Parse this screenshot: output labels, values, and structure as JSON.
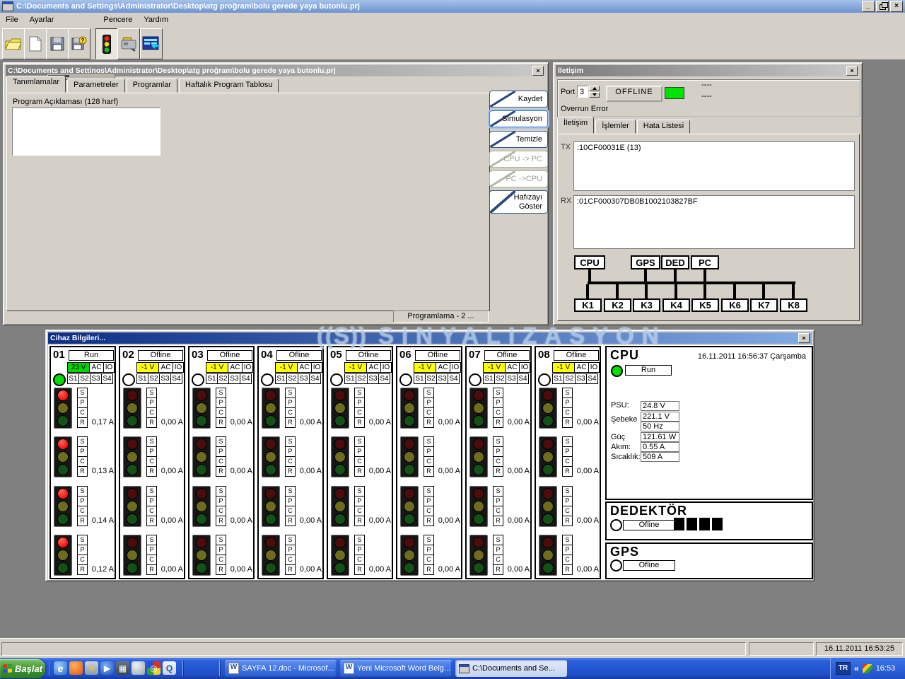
{
  "window": {
    "title": "C:\\Documents and Settings\\Administrator\\Desktop\\atg proğram\\bolu gerede yaya butonlu.prj"
  },
  "menu": {
    "items": [
      "File",
      "Ayarlar",
      "Pencere",
      "Yardım"
    ]
  },
  "toolbar": {
    "buttons": [
      "open",
      "new-document",
      "save",
      "save-help",
      "simulation-traffic-light",
      "device",
      "connection-table"
    ]
  },
  "editor_window": {
    "title": "C:\\Documents and Settings\\Administrator\\Desktop\\atg proğram\\bolu gerede yaya butonlu.prj",
    "tabs": [
      "Tanımlamalar",
      "Parametreler",
      "Programlar",
      "Haftalık Program Tablosu"
    ],
    "active_tab": "Tanımlamalar",
    "description_label": "Program Açıklaması (128 harf)",
    "description_value": "",
    "buttons": [
      {
        "label": "Kaydet",
        "enabled": true,
        "focused": false
      },
      {
        "label": "Simulasyon",
        "enabled": true,
        "focused": true
      },
      {
        "label": "Temizle",
        "enabled": true,
        "focused": false
      },
      {
        "label": "CPU -> PC",
        "enabled": false,
        "focused": false
      },
      {
        "label": "PC ->CPU",
        "enabled": false,
        "focused": false
      },
      {
        "label": "Hafızayı Göster",
        "enabled": true,
        "focused": false
      }
    ],
    "status": "Programlama - 2 ..."
  },
  "iletisim_window": {
    "title": "İletişim",
    "port_label": "Port",
    "port_value": "3",
    "offline_button": "OFFLINE",
    "dashes": [
      "----",
      "----"
    ],
    "error_text": "Overrun Error",
    "tabs": [
      "İletişim",
      "İşlemler",
      "Hata Listesi"
    ],
    "active_tab": "İletişim",
    "tx_label": "TX",
    "tx_value": ":10CF00031E (13)",
    "rx_label": "RX",
    "rx_value": ":01CF000307DB0B1002103827BF",
    "diagram": {
      "top_nodes": [
        "CPU",
        "GPS",
        "DED",
        "PC"
      ],
      "bottom_nodes": [
        "K1",
        "K2",
        "K3",
        "K4",
        "K5",
        "K6",
        "K7",
        "K8"
      ]
    }
  },
  "device_window": {
    "title": "Cihaz Bilgileri...",
    "watermark": {
      "logo": "((S))",
      "text": "SINYALIZASYON"
    },
    "signal_letters": [
      "S",
      "P",
      "C",
      "R"
    ],
    "channels": [
      {
        "id": "01",
        "status": "Run",
        "run": true,
        "voltage": "23 V",
        "ac": "AC",
        "io": "IO",
        "inputs": [
          "S1",
          "S2",
          "S3",
          "S4"
        ],
        "currents": [
          "0,17 A",
          "0,13 A",
          "0,14 A",
          "0,12 A"
        ]
      },
      {
        "id": "02",
        "status": "Ofline",
        "run": false,
        "voltage": "-1 V",
        "ac": "AC",
        "io": "IO",
        "inputs": [
          "S1",
          "S2",
          "S3",
          "S4"
        ],
        "currents": [
          "0,00 A",
          "0,00 A",
          "0,00 A",
          "0,00 A"
        ]
      },
      {
        "id": "03",
        "status": "Ofline",
        "run": false,
        "voltage": "-1 V",
        "ac": "AC",
        "io": "IO",
        "inputs": [
          "S1",
          "S2",
          "S3",
          "S4"
        ],
        "currents": [
          "0,00 A",
          "0,00 A",
          "0,00 A",
          "0,00 A"
        ]
      },
      {
        "id": "04",
        "status": "Ofline",
        "run": false,
        "voltage": "-1 V",
        "ac": "AC",
        "io": "IO",
        "inputs": [
          "S1",
          "S2",
          "S3",
          "S4"
        ],
        "currents": [
          "0,00 A",
          "0,00 A",
          "0,00 A",
          "0,00 A"
        ]
      },
      {
        "id": "05",
        "status": "Ofline",
        "run": false,
        "voltage": "-1 V",
        "ac": "AC",
        "io": "IO",
        "inputs": [
          "S1",
          "S2",
          "S3",
          "S4"
        ],
        "currents": [
          "0,00 A",
          "0,00 A",
          "0,00 A",
          "0,00 A"
        ]
      },
      {
        "id": "06",
        "status": "Ofline",
        "run": false,
        "voltage": "-1 V",
        "ac": "AC",
        "io": "IO",
        "inputs": [
          "S1",
          "S2",
          "S3",
          "S4"
        ],
        "currents": [
          "0,00 A",
          "0,00 A",
          "0,00 A",
          "0,00 A"
        ]
      },
      {
        "id": "07",
        "status": "Ofline",
        "run": false,
        "voltage": "-1 V",
        "ac": "AC",
        "io": "IO",
        "inputs": [
          "S1",
          "S2",
          "S3",
          "S4"
        ],
        "currents": [
          "0,00 A",
          "0,00 A",
          "0,00 A",
          "0,00 A"
        ]
      },
      {
        "id": "08",
        "status": "Ofline",
        "run": false,
        "voltage": "-1 V",
        "ac": "AC",
        "io": "IO",
        "inputs": [
          "S1",
          "S2",
          "S3",
          "S4"
        ],
        "currents": [
          "0,00 A",
          "0,00 A",
          "0,00 A",
          "0,00 A"
        ]
      }
    ],
    "cpu": {
      "title": "CPU",
      "datetime": "16.11.2011 16:56:37 Çarşamba",
      "status": "Run",
      "fields": [
        {
          "label": "PSU:",
          "values": [
            "24.8 V"
          ]
        },
        {
          "label": "Şebeke",
          "values": [
            "221.1 V",
            "50 Hz"
          ]
        },
        {
          "label": "Güç",
          "values": [
            "121.61 W"
          ]
        },
        {
          "label": "Akım:",
          "values": [
            "0.55 A"
          ]
        },
        {
          "label": "Sıcaklık:",
          "values": [
            "509 A"
          ]
        }
      ]
    },
    "dedektor": {
      "title": "DEDEKTÖR",
      "status": "Ofline",
      "squares": 4
    },
    "gps": {
      "title": "GPS",
      "status": "Ofline"
    }
  },
  "statusbar": {
    "datetime": "16.11.2011 16:53:25"
  },
  "taskbar": {
    "start_label": "Başlat",
    "quicklaunch": [
      "ie",
      "firefox",
      "winamp",
      "media-player",
      "movie-maker",
      "browser",
      "picasa",
      "quicktime"
    ],
    "tasks": [
      {
        "label": "SAYFA 12.doc - Microsof...",
        "icon": "word",
        "active": false
      },
      {
        "label": "Yeni Microsoft Word Belg...",
        "icon": "word",
        "active": false
      },
      {
        "label": "C:\\Documents and Se...",
        "icon": "app",
        "active": true
      }
    ],
    "tray": {
      "lang": "TR",
      "chevron": "«",
      "time": "16:53"
    }
  }
}
